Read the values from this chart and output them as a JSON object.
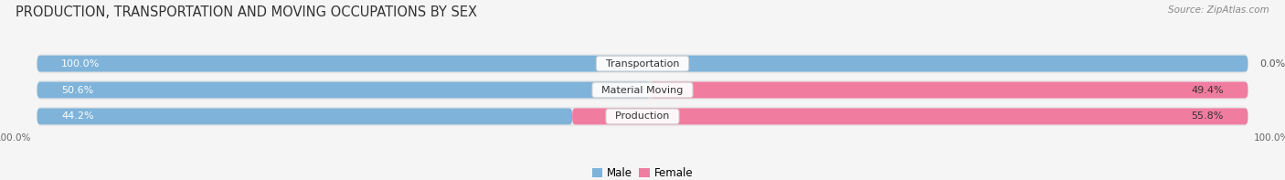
{
  "title": "PRODUCTION, TRANSPORTATION AND MOVING OCCUPATIONS BY SEX",
  "source": "Source: ZipAtlas.com",
  "categories": [
    "Production",
    "Material Moving",
    "Transportation"
  ],
  "male_values": [
    44.2,
    50.6,
    100.0
  ],
  "female_values": [
    55.8,
    49.4,
    0.0
  ],
  "male_color": "#7fb3d9",
  "female_color": "#f07ca0",
  "male_label_color": "white",
  "female_label_color": "#333333",
  "male_label": "Male",
  "female_label": "Female",
  "bg_color": "#f5f5f5",
  "row_bg_color": "#e8e8e8",
  "title_fontsize": 10.5,
  "source_fontsize": 7.5,
  "pct_label_fontsize": 8,
  "cat_label_fontsize": 8,
  "axis_label_fontsize": 7.5,
  "legend_fontsize": 8.5,
  "bar_height": 0.62
}
